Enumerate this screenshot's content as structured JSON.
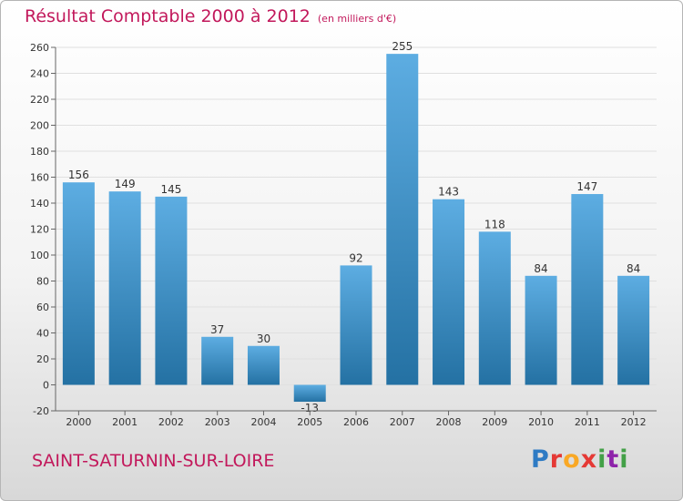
{
  "header": {
    "title": "Résultat Comptable 2000 à 2012",
    "subtitle": "(en milliers d'€)"
  },
  "footer": {
    "commune": "SAINT-SATURNIN-SUR-LOIRE",
    "logo": "Proxiti"
  },
  "colors": {
    "bar_light": "#5dade2",
    "bar_dark": "#2471a3",
    "grid": "#e0e0e0",
    "title": "#c2185b"
  },
  "chart_data": {
    "type": "bar",
    "title": "Résultat Comptable 2000 à 2012",
    "subtitle": "(en milliers d'€)",
    "xlabel": "",
    "ylabel": "",
    "categories": [
      "2000",
      "2001",
      "2002",
      "2003",
      "2004",
      "2005",
      "2006",
      "2007",
      "2008",
      "2009",
      "2010",
      "2011",
      "2012"
    ],
    "values": [
      156,
      149,
      145,
      37,
      30,
      -13,
      92,
      255,
      143,
      118,
      84,
      147,
      84
    ],
    "ylim": [
      -20,
      260
    ],
    "yticks": [
      -20,
      0,
      20,
      40,
      60,
      80,
      100,
      120,
      140,
      160,
      180,
      200,
      220,
      240,
      260
    ],
    "grid": true,
    "legend": "none"
  }
}
